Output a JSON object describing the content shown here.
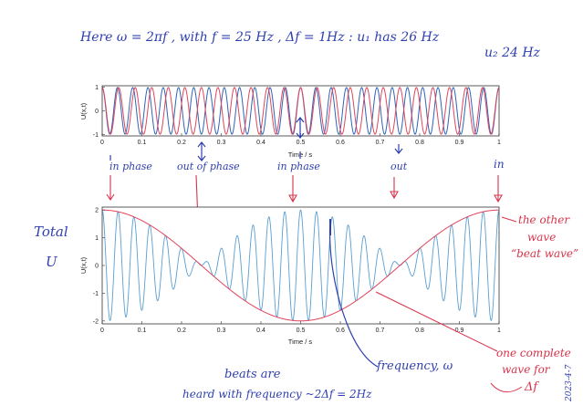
{
  "annotations": {
    "top_line": "Here   ω = 2πf , with f = 25 Hz  ,   Δf = 1Hz  :  u₁  has  26 Hz",
    "top_line2": "u₂         24 Hz",
    "phase_labels": [
      "in phase",
      "out of phase",
      "in phase",
      "out",
      "in"
    ],
    "total_label_1": "Total",
    "total_label_2": "U",
    "other_wave_1": "the other",
    "other_wave_2": "wave",
    "other_wave_3": "“beat wave”",
    "frequency_label": "frequency, ω",
    "one_wave_1": "one complete",
    "one_wave_2": "wave for",
    "one_wave_3": "Δf",
    "beats_1": "beats are",
    "beats_2": "heard with frequency ~2Δf = 2Hz",
    "date": "2023-4-7"
  },
  "colors": {
    "ink_blue": "#2e3fb0",
    "ink_red": "#d8334a",
    "wave_blue": "#2f63b8",
    "wave_red": "#e0455c",
    "sum_wave": "#5a9ed0",
    "envelope": "#e0455c"
  },
  "chart_data": [
    {
      "type": "line",
      "xlabel": "Time / s",
      "ylabel": "U(x,t)",
      "xlim": [
        0,
        1
      ],
      "ylim": [
        -1,
        1
      ],
      "x_ticks": [
        "0",
        "0.1",
        "0.2",
        "0.3",
        "0.4",
        "0.5",
        "0.6",
        "0.7",
        "0.8",
        "0.9",
        "1"
      ],
      "y_ticks": [
        "1",
        "0",
        "-1"
      ],
      "series": [
        {
          "function": "cos",
          "frequency_hz": 26,
          "amplitude": 1,
          "color": "#2f63b8"
        },
        {
          "function": "cos",
          "frequency_hz": 24,
          "amplitude": 1,
          "color": "#e0455c"
        }
      ],
      "grid": false
    },
    {
      "type": "line",
      "xlabel": "Time / s",
      "ylabel": "U(x,t)",
      "xlim": [
        0,
        1
      ],
      "ylim": [
        -2,
        2
      ],
      "x_ticks": [
        "0",
        "0.1",
        "0.2",
        "0.3",
        "0.4",
        "0.5",
        "0.6",
        "0.7",
        "0.8",
        "0.9",
        "1"
      ],
      "y_ticks": [
        "2",
        "1",
        "0",
        "-1",
        "-2"
      ],
      "series": [
        {
          "function": "cos26+cos24",
          "frequencies_hz": [
            26,
            24
          ],
          "color": "#5a9ed0"
        },
        {
          "function": "2cos(2πΔf t)",
          "frequency_hz": 1,
          "amplitude": 2,
          "color": "#e0455c"
        }
      ],
      "grid": false
    }
  ]
}
